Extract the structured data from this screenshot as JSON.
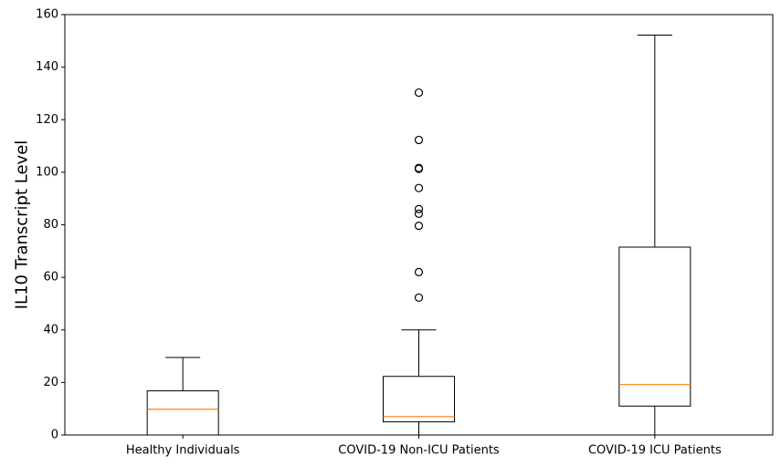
{
  "chart_data": {
    "type": "boxplot",
    "ylabel": "IL10 Transcript Level",
    "ylim": [
      0,
      160
    ],
    "yticks": [
      0,
      20,
      40,
      60,
      80,
      100,
      120,
      140,
      160
    ],
    "grid": false,
    "colors": {
      "box": "#000000",
      "median": "#ff7f0e",
      "whisker": "#000000",
      "flier": "#000000"
    },
    "categories": [
      "Healthy Individuals",
      "COVID-19 Non-ICU Patients",
      "COVID-19 ICU Patients"
    ],
    "boxes": [
      {
        "name": "Healthy Individuals",
        "whisker_low": 0,
        "q1": 0,
        "median": 9.8,
        "q3": 16.8,
        "whisker_high": 29.5,
        "fliers": []
      },
      {
        "name": "COVID-19 Non-ICU Patients",
        "whisker_low": 0,
        "q1": 5,
        "median": 7,
        "q3": 22.3,
        "whisker_high": 40,
        "fliers": [
          52.3,
          62,
          79.6,
          84.2,
          86,
          94,
          101.3,
          101.6,
          112.3,
          130.3
        ]
      },
      {
        "name": "COVID-19 ICU Patients",
        "whisker_low": 0,
        "q1": 11,
        "median": 19.2,
        "q3": 71.5,
        "whisker_high": 152.2,
        "fliers": []
      }
    ]
  }
}
